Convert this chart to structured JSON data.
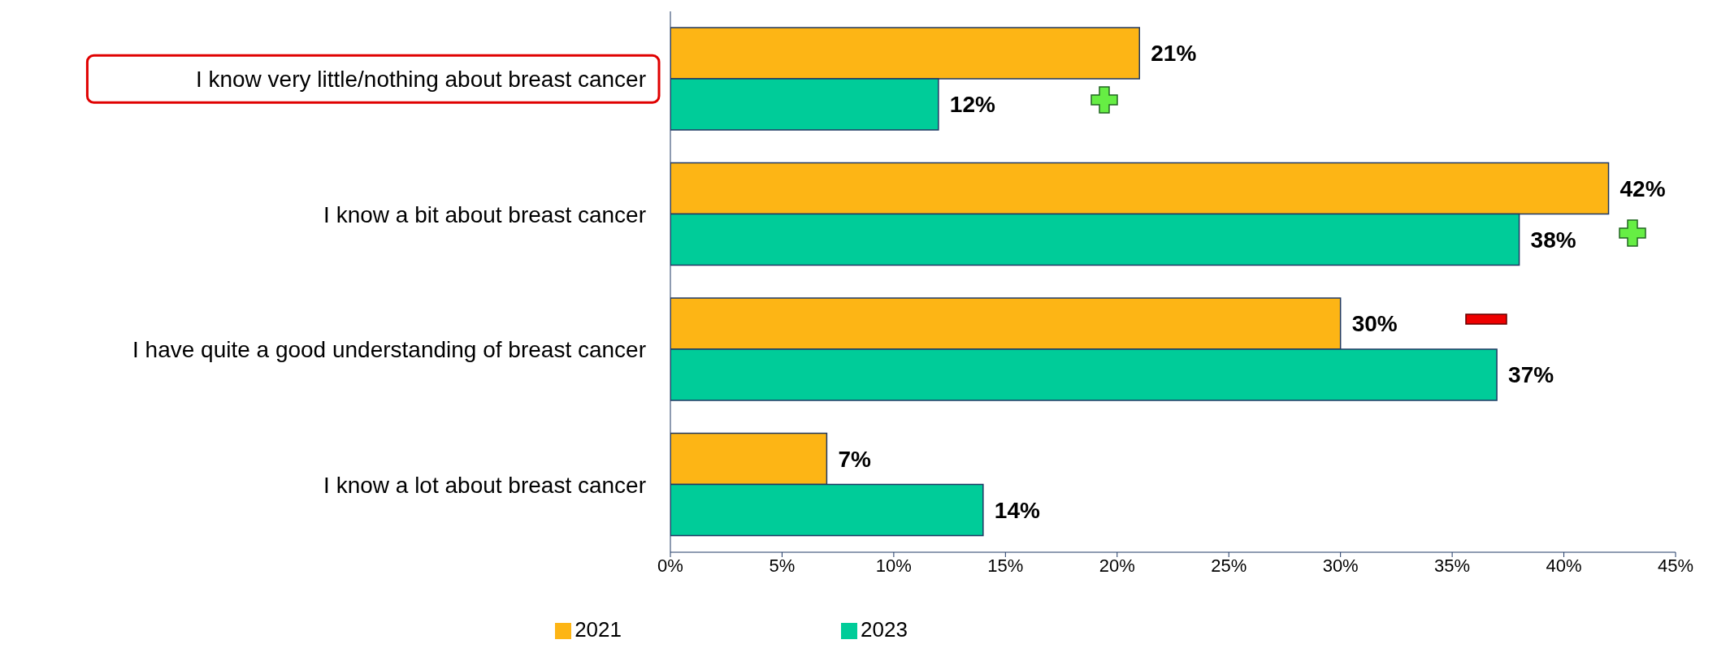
{
  "chart_data": {
    "type": "bar",
    "orientation": "horizontal",
    "categories": [
      "I know very little/nothing about breast cancer",
      "I know a bit about breast cancer",
      "I have quite a good understanding of breast cancer",
      "I know a lot about breast cancer"
    ],
    "series": [
      {
        "name": "2021",
        "color": "#fdb515",
        "values": [
          21,
          42,
          30,
          7
        ],
        "value_labels": [
          "21%",
          "42%",
          "30%",
          "7%"
        ]
      },
      {
        "name": "2023",
        "color": "#00cc99",
        "values": [
          12,
          38,
          37,
          14
        ],
        "value_labels": [
          "12%",
          "38%",
          "37%",
          "14%"
        ]
      }
    ],
    "xlim": [
      0,
      45
    ],
    "xticks": [
      {
        "value": 0,
        "label": "0%"
      },
      {
        "value": 5,
        "label": "5%"
      },
      {
        "value": 10,
        "label": "10%"
      },
      {
        "value": 15,
        "label": "15%"
      },
      {
        "value": 20,
        "label": "20%"
      },
      {
        "value": 25,
        "label": "25%"
      },
      {
        "value": 30,
        "label": "30%"
      },
      {
        "value": 35,
        "label": "35%"
      },
      {
        "value": 40,
        "label": "40%"
      },
      {
        "value": 45,
        "label": "45%"
      }
    ],
    "grid": false,
    "legend": "bottom"
  }
}
